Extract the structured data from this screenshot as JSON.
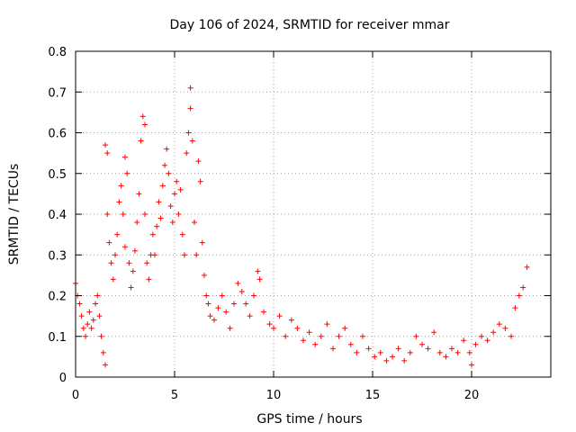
{
  "chart_data": {
    "type": "scatter",
    "title": "Day 106 of 2024, SRMTID for receiver mmar",
    "xlabel": "GPS time / hours",
    "ylabel": "SRMTID / TECUs",
    "xlim": [
      0,
      24
    ],
    "ylim": [
      0,
      0.8
    ],
    "xticks": [
      "0",
      "5",
      "10",
      "15",
      "20"
    ],
    "xtick_values": [
      0,
      5,
      10,
      15,
      20
    ],
    "yticks": [
      "0",
      "0.1",
      "0.2",
      "0.3",
      "0.4",
      "0.5",
      "0.6",
      "0.7",
      "0.8"
    ],
    "ytick_values": [
      0,
      0.1,
      0.2,
      0.3,
      0.4,
      0.5,
      0.6,
      0.7,
      0.8
    ],
    "grid": true,
    "marker": "+",
    "series": [
      {
        "name": "SRMTID",
        "color": "#ff0000",
        "x": [
          0.0,
          0.1,
          0.2,
          0.3,
          0.4,
          0.5,
          0.6,
          0.7,
          0.8,
          0.9,
          1.0,
          1.1,
          1.2,
          1.3,
          1.4,
          1.5,
          1.5,
          1.6,
          1.6,
          1.7,
          1.8,
          1.9,
          2.0,
          2.1,
          2.2,
          2.3,
          2.4,
          2.5,
          2.5,
          2.6,
          2.7,
          2.8,
          2.9,
          3.0,
          3.1,
          3.2,
          3.3,
          3.4,
          3.5,
          3.5,
          3.6,
          3.7,
          3.8,
          3.9,
          4.0,
          4.1,
          4.2,
          4.3,
          4.4,
          4.5,
          4.6,
          4.7,
          4.8,
          4.9,
          5.0,
          5.1,
          5.2,
          5.3,
          5.4,
          5.5,
          5.6,
          5.7,
          5.8,
          5.8,
          5.9,
          6.0,
          6.1,
          6.2,
          6.3,
          6.4,
          6.5,
          6.6,
          6.7,
          6.8,
          7.0,
          7.2,
          7.4,
          7.6,
          7.8,
          8.0,
          8.2,
          8.4,
          8.6,
          8.8,
          9.0,
          9.2,
          9.3,
          9.5,
          9.8,
          10.0,
          10.3,
          10.6,
          10.9,
          11.2,
          11.5,
          11.8,
          12.1,
          12.4,
          12.7,
          13.0,
          13.3,
          13.6,
          13.9,
          14.2,
          14.5,
          14.8,
          15.1,
          15.4,
          15.7,
          16.0,
          16.3,
          16.6,
          16.9,
          17.2,
          17.5,
          17.8,
          18.1,
          18.4,
          18.7,
          19.0,
          19.3,
          19.6,
          19.9,
          20.0,
          20.2,
          20.5,
          20.8,
          21.1,
          21.4,
          21.7,
          22.0,
          22.2,
          22.4,
          22.6,
          22.8
        ],
        "y": [
          0.23,
          0.2,
          0.18,
          0.15,
          0.12,
          0.1,
          0.13,
          0.16,
          0.12,
          0.14,
          0.18,
          0.2,
          0.15,
          0.1,
          0.06,
          0.03,
          0.57,
          0.55,
          0.4,
          0.33,
          0.28,
          0.24,
          0.3,
          0.35,
          0.43,
          0.47,
          0.4,
          0.32,
          0.54,
          0.5,
          0.28,
          0.22,
          0.26,
          0.31,
          0.38,
          0.45,
          0.58,
          0.64,
          0.62,
          0.4,
          0.28,
          0.24,
          0.3,
          0.35,
          0.3,
          0.37,
          0.43,
          0.39,
          0.47,
          0.52,
          0.56,
          0.5,
          0.42,
          0.38,
          0.45,
          0.48,
          0.4,
          0.46,
          0.35,
          0.3,
          0.55,
          0.6,
          0.71,
          0.66,
          0.58,
          0.38,
          0.3,
          0.53,
          0.48,
          0.33,
          0.25,
          0.2,
          0.18,
          0.15,
          0.14,
          0.17,
          0.2,
          0.16,
          0.12,
          0.18,
          0.23,
          0.21,
          0.18,
          0.15,
          0.2,
          0.26,
          0.24,
          0.16,
          0.13,
          0.12,
          0.15,
          0.1,
          0.14,
          0.12,
          0.09,
          0.11,
          0.08,
          0.1,
          0.13,
          0.07,
          0.1,
          0.12,
          0.08,
          0.06,
          0.1,
          0.07,
          0.05,
          0.06,
          0.04,
          0.05,
          0.07,
          0.04,
          0.06,
          0.1,
          0.08,
          0.07,
          0.11,
          0.06,
          0.05,
          0.07,
          0.06,
          0.09,
          0.06,
          0.03,
          0.08,
          0.1,
          0.09,
          0.11,
          0.13,
          0.12,
          0.1,
          0.17,
          0.2,
          0.22,
          0.27
        ]
      }
    ]
  }
}
